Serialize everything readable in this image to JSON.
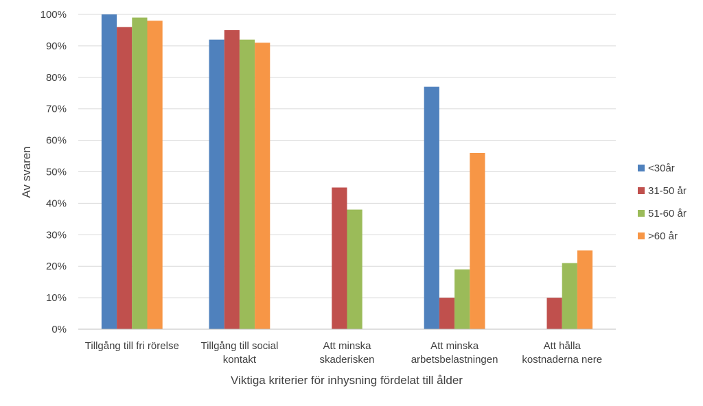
{
  "chart_data": {
    "type": "bar",
    "title": "",
    "xlabel": "Viktiga kriterier för inhysning fördelat till ålder",
    "ylabel": "Av svaren",
    "ylim": [
      0,
      100
    ],
    "yticks": [
      "0%",
      "10%",
      "20%",
      "30%",
      "40%",
      "50%",
      "60%",
      "70%",
      "80%",
      "90%",
      "100%"
    ],
    "grid": true,
    "legend_position": "right",
    "categories": [
      [
        "Tillgång till fri rörelse"
      ],
      [
        "Tillgång till social",
        "kontakt"
      ],
      [
        "Att minska",
        "skaderisken"
      ],
      [
        "Att minska",
        "arbetsbelastningen"
      ],
      [
        "Att hålla",
        "kostnaderna nere"
      ]
    ],
    "series": [
      {
        "name": "<30år",
        "color": "#4f81bd",
        "values": [
          100,
          92,
          0,
          77,
          0
        ]
      },
      {
        "name": "31-50 år",
        "color": "#c0504d",
        "values": [
          96,
          95,
          45,
          10,
          10
        ]
      },
      {
        "name": "51-60 år",
        "color": "#9bbb59",
        "values": [
          99,
          92,
          38,
          19,
          21
        ]
      },
      {
        "name": ">60 år",
        "color": "#f79646",
        "values": [
          98,
          91,
          0,
          56,
          25
        ]
      }
    ]
  }
}
